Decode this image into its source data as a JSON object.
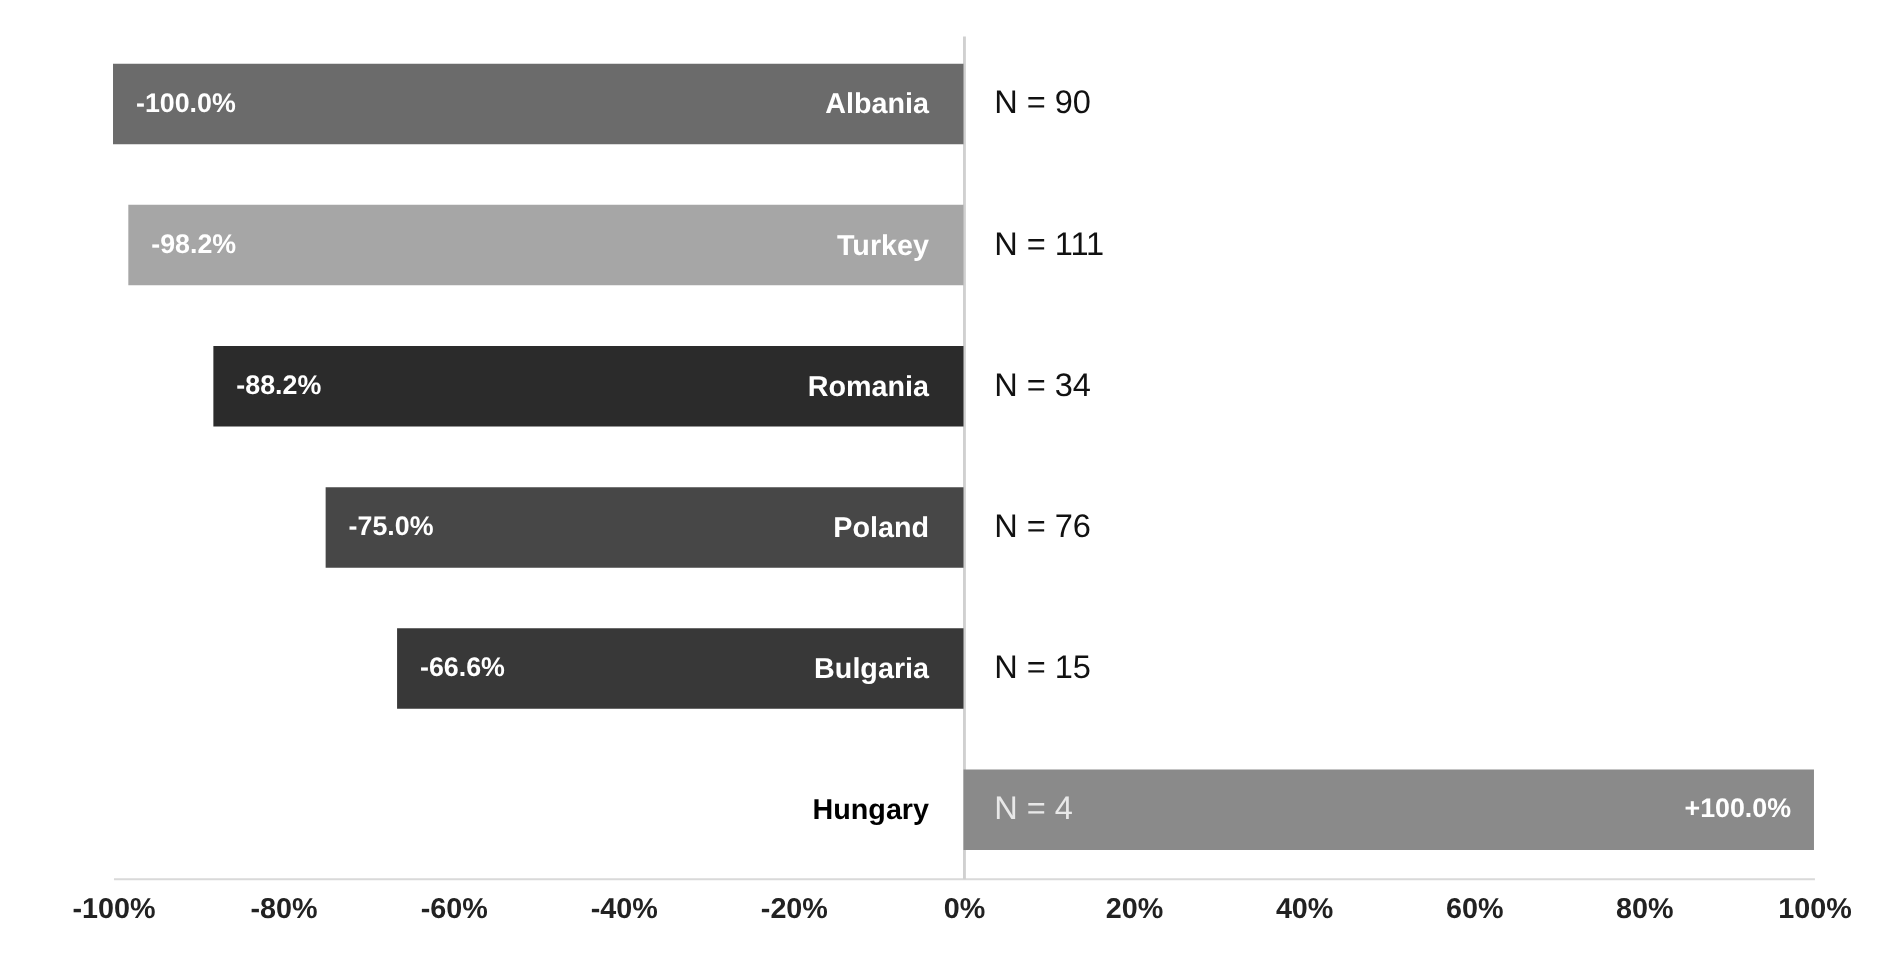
{
  "chart_data": {
    "type": "bar",
    "orientation": "horizontal",
    "categories": [
      "Albania",
      "Turkey",
      "Romania",
      "Poland",
      "Bulgaria",
      "Hungary"
    ],
    "values": [
      -100.0,
      -98.2,
      -88.2,
      -75.0,
      -66.6,
      100.0
    ],
    "colors": [
      "#6b6b6b",
      "#a6a6a6",
      "#2b2b2b",
      "#474747",
      "#383838",
      "#8a8a8a"
    ],
    "value_labels": [
      "-100.0%",
      "-98.2%",
      "-88.2%",
      "-75.0%",
      "-66.6%",
      "+100.0%"
    ],
    "xlim": [
      -100,
      100
    ],
    "xticks": [
      {
        "value": -100,
        "label": "-100%"
      },
      {
        "value": -80,
        "label": "-80%"
      },
      {
        "value": -60,
        "label": "-60%"
      },
      {
        "value": -40,
        "label": "-40%"
      },
      {
        "value": -20,
        "label": "-20%"
      },
      {
        "value": 0,
        "label": "0%"
      },
      {
        "value": 20,
        "label": "20%"
      },
      {
        "value": 40,
        "label": "40%"
      },
      {
        "value": 60,
        "label": "60%"
      },
      {
        "value": 80,
        "label": "80%"
      },
      {
        "value": 100,
        "label": "100%"
      }
    ],
    "grid": false,
    "annotations": [
      "N = 90",
      "N = 111",
      "N = 34",
      "N = 76",
      "N = 15",
      "N = 4"
    ]
  }
}
